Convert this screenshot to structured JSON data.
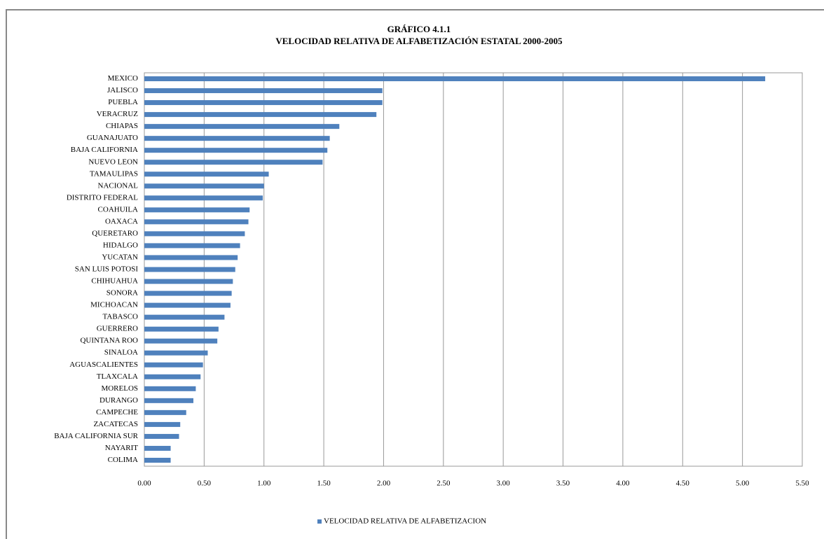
{
  "chart_data": {
    "type": "hbar",
    "title": "GRÁFICO 4.1.1",
    "subtitle": "VELOCIDAD RELATIVA DE ALFABETIZACIÓN ESTATAL 2000-2005",
    "categories": [
      "MEXICO",
      "JALISCO",
      "PUEBLA",
      "VERACRUZ",
      "CHIAPAS",
      "GUANAJUATO",
      "BAJA CALIFORNIA",
      "NUEVO LEON",
      "TAMAULIPAS",
      "NACIONAL",
      "DISTRITO FEDERAL",
      "COAHUILA",
      "OAXACA",
      "QUERETARO",
      "HIDALGO",
      "YUCATAN",
      "SAN LUIS POTOSI",
      "CHIHUAHUA",
      "SONORA",
      "MICHOACAN",
      "TABASCO",
      "GUERRERO",
      "QUINTANA ROO",
      "SINALOA",
      "AGUASCALIENTES",
      "TLAXCALA",
      "MORELOS",
      "DURANGO",
      "CAMPECHE",
      "ZACATECAS",
      "BAJA CALIFORNIA SUR",
      "NAYARIT",
      "COLIMA"
    ],
    "series": [
      {
        "name": "VELOCIDAD RELATIVA DE ALFABETIZACION",
        "color": "#4f81bd",
        "values": [
          5.19,
          1.99,
          1.99,
          1.94,
          1.63,
          1.55,
          1.53,
          1.49,
          1.04,
          1.0,
          0.99,
          0.88,
          0.87,
          0.84,
          0.8,
          0.78,
          0.76,
          0.74,
          0.73,
          0.72,
          0.67,
          0.62,
          0.61,
          0.53,
          0.49,
          0.47,
          0.43,
          0.41,
          0.35,
          0.3,
          0.29,
          0.22,
          0.22
        ]
      }
    ],
    "xlim": [
      0,
      5.5
    ],
    "xticks": [
      {
        "value": 0,
        "label": "0.00"
      },
      {
        "value": 0.5,
        "label": "0.50"
      },
      {
        "value": 1,
        "label": "1.00"
      },
      {
        "value": 1.5,
        "label": "1.50"
      },
      {
        "value": 2,
        "label": "2.00"
      },
      {
        "value": 2.5,
        "label": "2.50"
      },
      {
        "value": 3,
        "label": "3.00"
      },
      {
        "value": 3.5,
        "label": "3.50"
      },
      {
        "value": 4,
        "label": "4.00"
      },
      {
        "value": 4.5,
        "label": "4.50"
      },
      {
        "value": 5,
        "label": "5.00"
      },
      {
        "value": 5.5,
        "label": "5.50"
      }
    ],
    "grid": true,
    "legend": "bottom"
  }
}
